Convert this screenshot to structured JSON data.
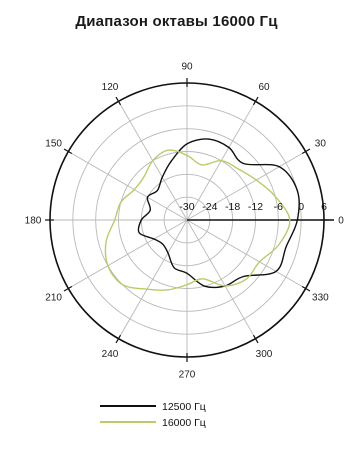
{
  "chart_data": {
    "type": "polar",
    "title": "Диапазон октавы 16000 Гц",
    "angle_unit": "deg",
    "angle_ticks": [
      0,
      30,
      60,
      90,
      120,
      150,
      180,
      210,
      240,
      270,
      300,
      330
    ],
    "angle_tick_labels": [
      "0",
      "30",
      "60",
      "90",
      "120",
      "150",
      "180",
      "210",
      "240",
      "270",
      "300",
      "330"
    ],
    "radial_range": [
      -30,
      6
    ],
    "radial_ticks": [
      -30,
      -24,
      -18,
      -12,
      -6,
      0,
      6
    ],
    "radial_tick_labels": [
      "-30",
      "-24",
      "-18",
      "-12",
      "-6",
      "0",
      "6"
    ],
    "grid": true,
    "legend_position": "bottom",
    "series": [
      {
        "name": "12500 Гц",
        "color": "#111111",
        "angles": [
          0,
          15,
          30,
          45,
          60,
          75,
          90,
          105,
          120,
          135,
          150,
          165,
          180,
          195,
          210,
          225,
          240,
          255,
          270,
          285,
          300,
          315,
          330,
          345
        ],
        "values": [
          -1,
          0,
          -2,
          -9,
          -8,
          -8,
          -10,
          -14,
          -17,
          -19,
          -18,
          -20,
          -18,
          -17,
          -20,
          -21,
          -20,
          -17,
          -16,
          -12,
          -10,
          -9,
          -3,
          -3
        ]
      },
      {
        "name": "16000 Гц",
        "color": "#b8cc6a",
        "angles": [
          0,
          15,
          30,
          45,
          60,
          75,
          90,
          105,
          120,
          135,
          150,
          165,
          180,
          195,
          210,
          225,
          240,
          255,
          270,
          285,
          300,
          315,
          330,
          345
        ],
        "values": [
          -3,
          -6,
          -9,
          -11,
          -12,
          -15,
          -13,
          -11,
          -12,
          -14,
          -14,
          -12,
          -11,
          -8,
          -6,
          -6,
          -9,
          -11,
          -13,
          -14,
          -10,
          -8,
          -8,
          -5
        ]
      }
    ]
  }
}
